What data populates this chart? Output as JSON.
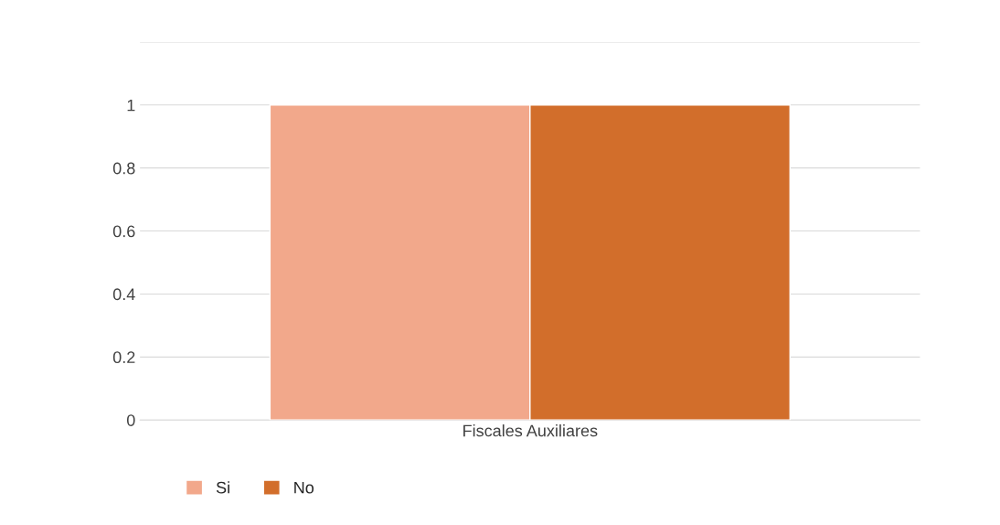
{
  "chart_data": {
    "type": "bar",
    "categories": [
      "Fiscales Auxiliares"
    ],
    "series": [
      {
        "name": "Si",
        "color": "#f2a88b",
        "values": [
          1
        ]
      },
      {
        "name": "No",
        "color": "#d26e2b",
        "values": [
          1
        ]
      }
    ],
    "ylim": [
      0,
      1.2
    ],
    "yticks": [
      0,
      0.2,
      0.4,
      0.6,
      0.8,
      1,
      {
        "value": 1.2,
        "label": null
      }
    ],
    "grid": "y",
    "legend": "bottom"
  }
}
